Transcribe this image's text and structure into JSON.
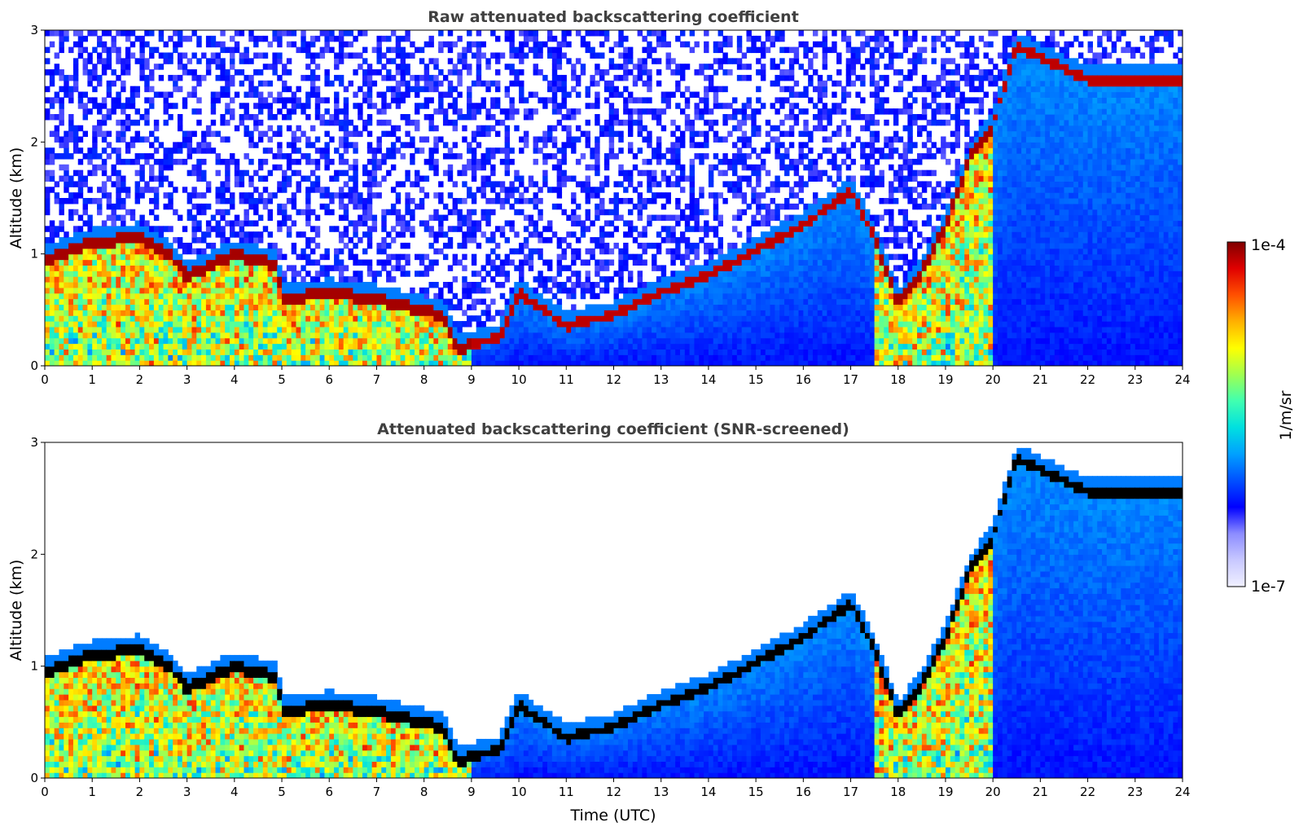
{
  "chart_data": [
    {
      "type": "heatmap",
      "title": "Raw attenuated backscattering coefficient",
      "xlabel": "",
      "ylabel": "Altitude (km)",
      "xlim": [
        0,
        24
      ],
      "ylim": [
        0,
        3
      ],
      "xticks": [
        "0",
        "1",
        "2",
        "3",
        "4",
        "5",
        "6",
        "7",
        "8",
        "9",
        "10",
        "11",
        "12",
        "13",
        "14",
        "15",
        "16",
        "17",
        "18",
        "19",
        "20",
        "21",
        "22",
        "23",
        "24"
      ],
      "yticks": [
        "0",
        "1",
        "2",
        "3"
      ],
      "cloud_top_km": [
        {
          "t": 0,
          "z": 1.0
        },
        {
          "t": 1,
          "z": 1.15
        },
        {
          "t": 2,
          "z": 1.2
        },
        {
          "t": 2.6,
          "z": 1.05
        },
        {
          "t": 3,
          "z": 0.85
        },
        {
          "t": 4,
          "z": 1.05
        },
        {
          "t": 4.9,
          "z": 0.95
        },
        {
          "t": 5,
          "z": 0.65
        },
        {
          "t": 6,
          "z": 0.7
        },
        {
          "t": 7,
          "z": 0.65
        },
        {
          "t": 8.4,
          "z": 0.5
        },
        {
          "t": 8.7,
          "z": 0.2
        },
        {
          "t": 9.6,
          "z": 0.3
        },
        {
          "t": 10,
          "z": 0.7
        },
        {
          "t": 11,
          "z": 0.4
        },
        {
          "t": 12,
          "z": 0.5
        },
        {
          "t": 13,
          "z": 0.7
        },
        {
          "t": 14,
          "z": 0.85
        },
        {
          "t": 14.9,
          "z": 1.05
        },
        {
          "t": 16,
          "z": 1.3
        },
        {
          "t": 17,
          "z": 1.6
        },
        {
          "t": 17.5,
          "z": 1.2
        },
        {
          "t": 18,
          "z": 0.6
        },
        {
          "t": 18.5,
          "z": 0.9
        },
        {
          "t": 19,
          "z": 1.3
        },
        {
          "t": 19.5,
          "z": 1.9
        },
        {
          "t": 20,
          "z": 2.2
        },
        {
          "t": 20.5,
          "z": 2.9
        },
        {
          "t": 21,
          "z": 2.8
        },
        {
          "t": 22,
          "z": 2.6
        }
      ]
    },
    {
      "type": "heatmap",
      "title": "Attenuated backscattering coefficient (SNR-screened)",
      "xlabel": "Time (UTC)",
      "ylabel": "Altitude (km)",
      "xlim": [
        0,
        24
      ],
      "ylim": [
        0,
        3
      ],
      "xticks": [
        "0",
        "1",
        "2",
        "3",
        "4",
        "5",
        "6",
        "7",
        "8",
        "9",
        "10",
        "11",
        "12",
        "13",
        "14",
        "15",
        "16",
        "17",
        "18",
        "19",
        "20",
        "21",
        "22",
        "23",
        "24"
      ],
      "yticks": [
        "0",
        "1",
        "2",
        "3"
      ]
    }
  ],
  "colorbar": {
    "label": "1/m/sr",
    "min_label": "1e-7",
    "max_label": "1e-4",
    "colors": [
      "#f0f0ff",
      "#c8c8ff",
      "#8c8cff",
      "#0000ff",
      "#0050ff",
      "#00a0ff",
      "#00e0e0",
      "#40ffb0",
      "#a0ff50",
      "#ffff00",
      "#ffb000",
      "#ff5000",
      "#e00000",
      "#800000"
    ]
  }
}
